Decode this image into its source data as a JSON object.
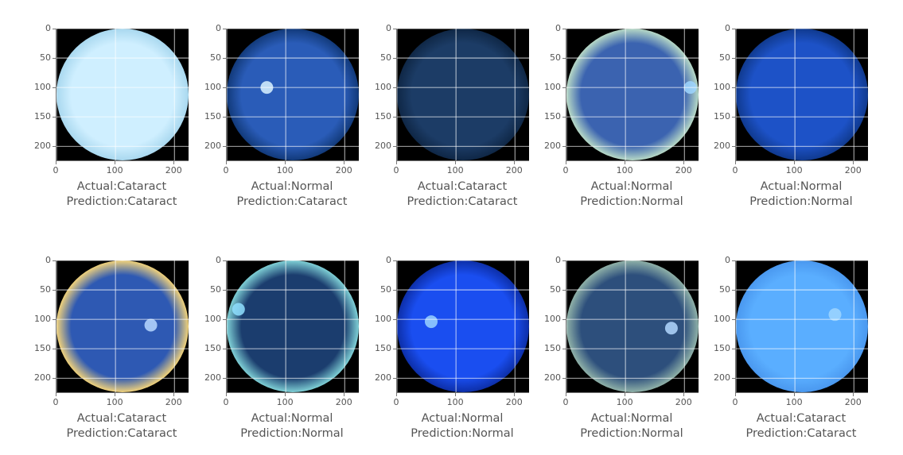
{
  "axis": {
    "yticks": [
      "0",
      "50",
      "100",
      "150",
      "200"
    ],
    "xticks": [
      "0",
      "100",
      "200"
    ],
    "range": [
      0,
      224
    ]
  },
  "panels": [
    {
      "actual": "Actual:Cataract",
      "prediction": "Prediction:Cataract",
      "fundus": {
        "bg": "#cfefff",
        "edge": "#a9d8ef",
        "disc": "",
        "discx": 0,
        "discy": 0
      }
    },
    {
      "actual": "Actual:Normal",
      "prediction": "Prediction:Cataract",
      "fundus": {
        "bg": "#2a5cb8",
        "edge": "#123a7a",
        "disc": "#d9f2ff",
        "discx": 68,
        "discy": 100
      }
    },
    {
      "actual": "Actual:Cataract",
      "prediction": "Prediction:Cataract",
      "fundus": {
        "bg": "#1c3c66",
        "edge": "#0f2746",
        "disc": "",
        "discx": 0,
        "discy": 0
      }
    },
    {
      "actual": "Actual:Normal",
      "prediction": "Prediction:Normal",
      "fundus": {
        "bg": "#3b63b0",
        "edge": "#b7d9c6",
        "disc": "#9fd6ff",
        "discx": 210,
        "discy": 100
      }
    },
    {
      "actual": "Actual:Normal",
      "prediction": "Prediction:Normal",
      "fundus": {
        "bg": "#1d52c7",
        "edge": "#103a8f",
        "disc": "",
        "discx": 0,
        "discy": 0
      }
    },
    {
      "actual": "Actual:Cataract",
      "prediction": "Prediction:Cataract",
      "fundus": {
        "bg": "#2e59b3",
        "edge": "#f1d27a",
        "disc": "#b7d8ff",
        "discx": 160,
        "discy": 110
      }
    },
    {
      "actual": "Actual:Normal",
      "prediction": "Prediction:Normal",
      "fundus": {
        "bg": "#1b3d6e",
        "edge": "#7fd0d6",
        "disc": "#8fdfff",
        "discx": 20,
        "discy": 83
      }
    },
    {
      "actual": "Actual:Normal",
      "prediction": "Prediction:Normal",
      "fundus": {
        "bg": "#1a4ef0",
        "edge": "#0d2fa8",
        "disc": "#9ad3ff",
        "discx": 58,
        "discy": 104
      }
    },
    {
      "actual": "Actual:Normal",
      "prediction": "Prediction:Normal",
      "fundus": {
        "bg": "#2d4f7c",
        "edge": "#8fb1a8",
        "disc": "#b3d7ff",
        "discx": 178,
        "discy": 115
      }
    },
    {
      "actual": "Actual:Cataract",
      "prediction": "Prediction:Cataract",
      "fundus": {
        "bg": "#5aaeff",
        "edge": "#4a98ef",
        "disc": "#9fd6ff",
        "discx": 168,
        "discy": 92
      }
    }
  ]
}
